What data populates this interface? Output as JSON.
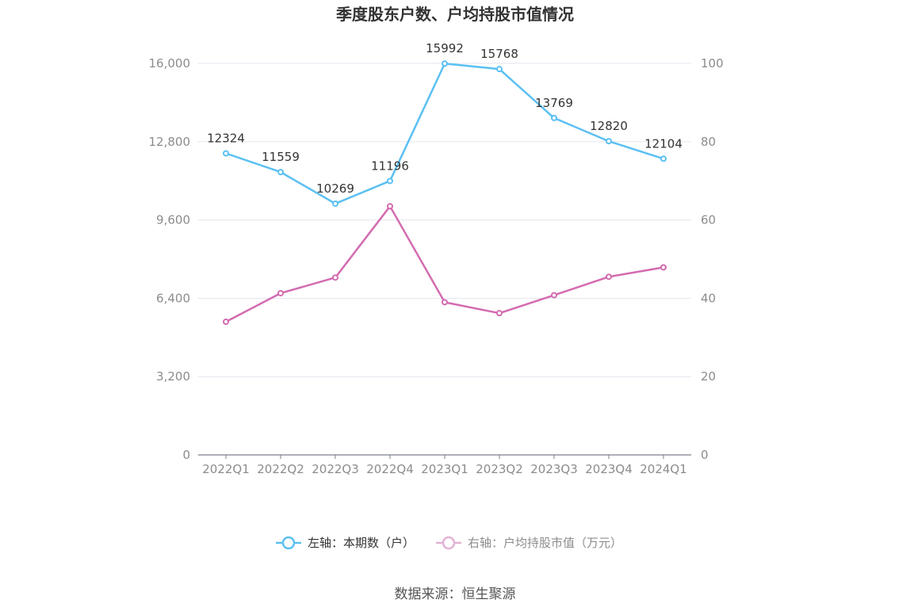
{
  "chart_data": {
    "type": "line",
    "title": "季度股东户数、户均持股市值情况",
    "categories": [
      "2022Q1",
      "2022Q2",
      "2022Q3",
      "2022Q4",
      "2023Q1",
      "2023Q2",
      "2023Q3",
      "2023Q4",
      "2024Q1"
    ],
    "left_axis": {
      "ticks": [
        "0",
        "3,200",
        "6,400",
        "9,600",
        "12,800",
        "16,000"
      ],
      "ylim": [
        0,
        16000
      ]
    },
    "right_axis": {
      "ticks": [
        "0",
        "20",
        "40",
        "60",
        "80",
        "100"
      ],
      "ylim": [
        0,
        100
      ]
    },
    "series": [
      {
        "name": "左轴：本期数（户）",
        "axis": "left",
        "color": "#5bc0f2",
        "values": [
          12324,
          11559,
          10269,
          11196,
          15992,
          15768,
          13769,
          12820,
          12104
        ],
        "labels": [
          "12324",
          "11559",
          "10269",
          "11196",
          "15992",
          "15768",
          "13769",
          "12820",
          "12104"
        ]
      },
      {
        "name": "右轴：户均持股市值（万元）",
        "axis": "right",
        "color": "#d36bb0",
        "values": [
          34.0,
          41.3,
          45.3,
          63.5,
          39.0,
          36.2,
          40.8,
          45.5,
          47.9
        ]
      }
    ],
    "grid": true,
    "legend_position": "bottom",
    "source": "数据来源：恒生聚源"
  }
}
